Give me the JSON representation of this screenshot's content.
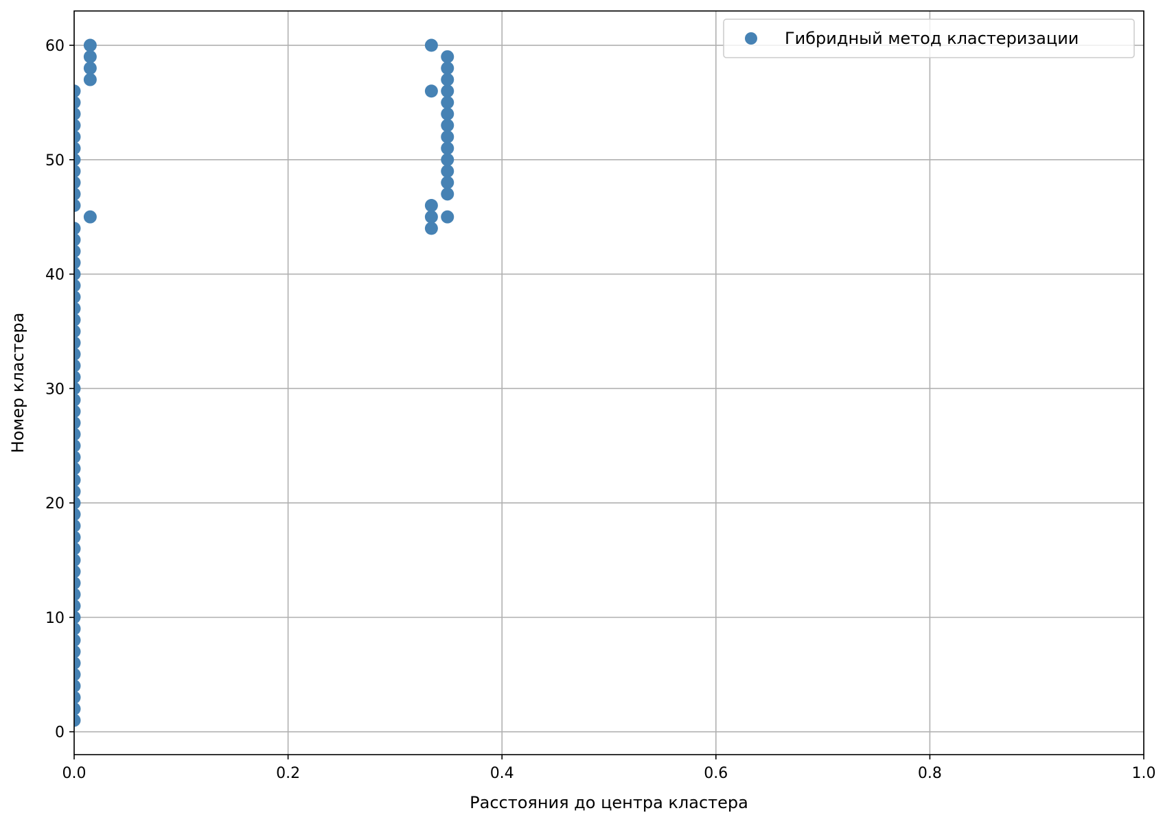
{
  "chart_data": {
    "type": "scatter",
    "xlabel": "Расстояния до центра кластера",
    "ylabel": "Номер кластера",
    "xlim": [
      0,
      1
    ],
    "ylim": [
      -2,
      63
    ],
    "xticks": [
      0.0,
      0.2,
      0.4,
      0.6,
      0.8,
      1.0
    ],
    "xtick_labels": [
      "0.0",
      "0.2",
      "0.4",
      "0.6",
      "0.8",
      "1.0"
    ],
    "yticks": [
      0,
      10,
      20,
      30,
      40,
      50,
      60
    ],
    "ytick_labels": [
      "0",
      "10",
      "20",
      "30",
      "40",
      "50",
      "60"
    ],
    "grid": true,
    "legend_position": "top-right",
    "marker_color": "#4682b4",
    "series": [
      {
        "name": "Гибридный метод кластеризации",
        "points": [
          [
            0,
            1
          ],
          [
            0,
            2
          ],
          [
            0,
            3
          ],
          [
            0,
            4
          ],
          [
            0,
            5
          ],
          [
            0,
            6
          ],
          [
            0,
            7
          ],
          [
            0,
            8
          ],
          [
            0,
            9
          ],
          [
            0,
            10
          ],
          [
            0,
            11
          ],
          [
            0,
            12
          ],
          [
            0,
            13
          ],
          [
            0,
            14
          ],
          [
            0,
            15
          ],
          [
            0,
            16
          ],
          [
            0,
            17
          ],
          [
            0,
            18
          ],
          [
            0,
            19
          ],
          [
            0,
            20
          ],
          [
            0,
            21
          ],
          [
            0,
            22
          ],
          [
            0,
            23
          ],
          [
            0,
            24
          ],
          [
            0,
            25
          ],
          [
            0,
            26
          ],
          [
            0,
            27
          ],
          [
            0,
            28
          ],
          [
            0,
            29
          ],
          [
            0,
            30
          ],
          [
            0,
            31
          ],
          [
            0,
            32
          ],
          [
            0,
            33
          ],
          [
            0,
            34
          ],
          [
            0,
            35
          ],
          [
            0,
            36
          ],
          [
            0,
            37
          ],
          [
            0,
            38
          ],
          [
            0,
            39
          ],
          [
            0,
            40
          ],
          [
            0,
            41
          ],
          [
            0,
            42
          ],
          [
            0,
            43
          ],
          [
            0,
            44
          ],
          [
            0,
            46
          ],
          [
            0,
            47
          ],
          [
            0,
            48
          ],
          [
            0,
            49
          ],
          [
            0,
            50
          ],
          [
            0,
            51
          ],
          [
            0,
            52
          ],
          [
            0,
            53
          ],
          [
            0,
            54
          ],
          [
            0,
            55
          ],
          [
            0,
            56
          ],
          [
            0.015,
            45
          ],
          [
            0.015,
            57
          ],
          [
            0.015,
            58
          ],
          [
            0.015,
            59
          ],
          [
            0.015,
            60
          ],
          [
            0.334,
            44
          ],
          [
            0.334,
            45
          ],
          [
            0.334,
            46
          ],
          [
            0.334,
            56
          ],
          [
            0.334,
            60
          ],
          [
            0.349,
            45
          ],
          [
            0.349,
            47
          ],
          [
            0.349,
            48
          ],
          [
            0.349,
            49
          ],
          [
            0.349,
            50
          ],
          [
            0.349,
            51
          ],
          [
            0.349,
            52
          ],
          [
            0.349,
            53
          ],
          [
            0.349,
            54
          ],
          [
            0.349,
            55
          ],
          [
            0.349,
            56
          ],
          [
            0.349,
            57
          ],
          [
            0.349,
            58
          ],
          [
            0.349,
            59
          ]
        ]
      }
    ]
  }
}
